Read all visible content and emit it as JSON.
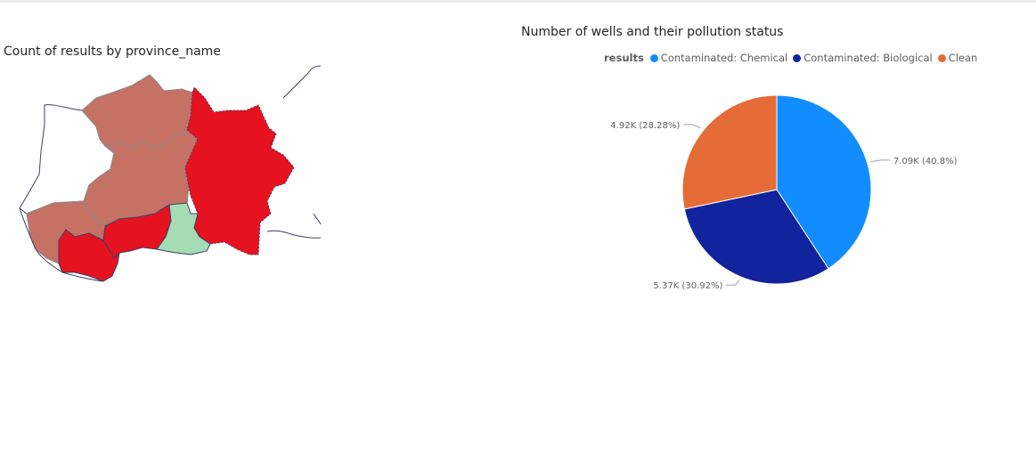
{
  "colors": {
    "chemical": "#118dff",
    "biological": "#12239e",
    "clean": "#e66c37",
    "map_high": "#e6121f",
    "map_mid": "#c57164",
    "map_low": "#a6dcb4",
    "map_none": "#ffffff",
    "border": "#3a3f6b"
  },
  "chart_data": [
    {
      "type": "map",
      "title": "Count of results by province_name",
      "regions": [
        {
          "name": "",
          "level": "none"
        },
        {
          "name": "",
          "level": "mid"
        },
        {
          "name": "",
          "level": "mid"
        },
        {
          "name": "",
          "level": "mid"
        },
        {
          "name": "",
          "level": "high"
        },
        {
          "name": "",
          "level": "high"
        },
        {
          "name": "",
          "level": "high"
        },
        {
          "name": "",
          "level": "low"
        }
      ]
    },
    {
      "type": "pie",
      "title": "Number of wells and their pollution status",
      "legend_title": "results",
      "legend_position": "top",
      "slices": [
        {
          "name": "Contaminated: Chemical",
          "value": 7090,
          "label": "7.09K (40.8%)",
          "color": "#118dff"
        },
        {
          "name": "Contaminated: Biological",
          "value": 5370,
          "label": "5.37K (30.92%)",
          "color": "#12239e"
        },
        {
          "name": "Clean",
          "value": 4920,
          "label": "4.92K (28.28%)",
          "color": "#e66c37"
        }
      ]
    }
  ]
}
